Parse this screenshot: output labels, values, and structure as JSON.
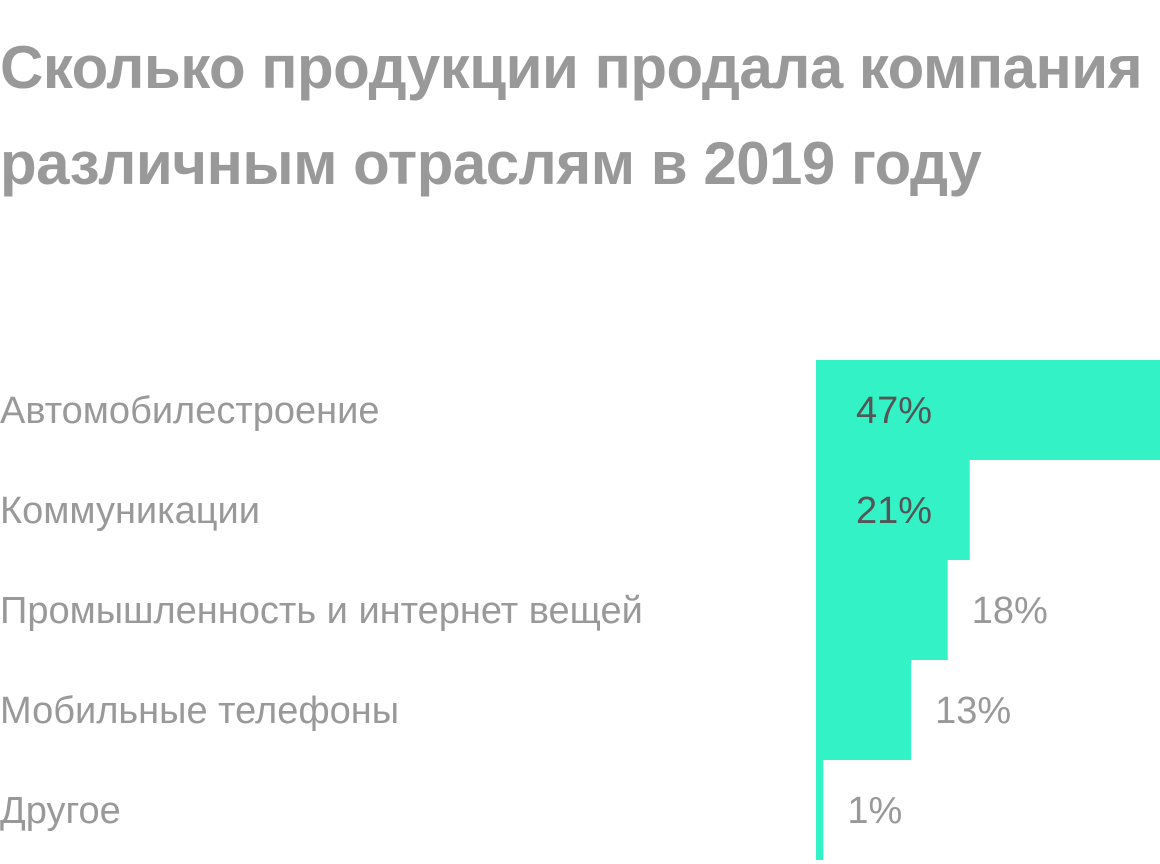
{
  "chart_data": {
    "type": "bar",
    "orientation": "horizontal",
    "title": "Сколько продукции продала компания различным отраслям в 2019 году",
    "categories": [
      "Автомобилестроение",
      "Коммуникации",
      "Промышленность и интернет вещей",
      "Мобильные телефоны",
      "Другое"
    ],
    "values": [
      47,
      21,
      18,
      13,
      1
    ],
    "value_labels": [
      "47%",
      "21%",
      "18%",
      "13%",
      "1%"
    ],
    "unit": "%",
    "xlabel": "",
    "ylabel": "",
    "xlim": [
      0,
      47
    ],
    "bar_color": "#33f2c6",
    "grid": false,
    "legend": "none"
  }
}
